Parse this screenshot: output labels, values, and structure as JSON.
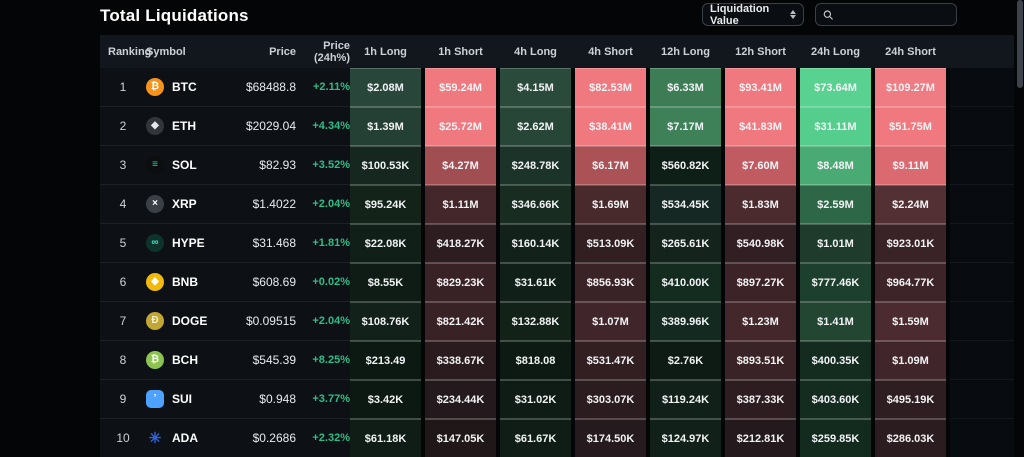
{
  "page": {
    "title": "Total Liquidations"
  },
  "controls": {
    "dropdown_label": "Liquidation Value",
    "search_placeholder": ""
  },
  "colors": {
    "change_positive": "#2ebd85",
    "header_bg": "#12161d",
    "row_bg": "#0d1116"
  },
  "table": {
    "headers": [
      "Ranking",
      "Symbol",
      "Price",
      "Price (24h%)",
      "1h Long",
      "1h Short",
      "4h Long",
      "4h Short",
      "12h Long",
      "12h Short",
      "24h Long",
      "24h Short"
    ],
    "rows": [
      {
        "rank": "1",
        "symbol": "BTC",
        "icon": {
          "glyph": "₿",
          "bg": "#f7931a",
          "fg": "#ffffff",
          "shape": "circle"
        },
        "price": "$68488.8",
        "change": "+2.11%",
        "cells": [
          {
            "v": "$2.08M",
            "bg": "#29463a"
          },
          {
            "v": "$59.24M",
            "bg": "#f0797f"
          },
          {
            "v": "$4.15M",
            "bg": "#2a4b3b"
          },
          {
            "v": "$82.53M",
            "bg": "#f0797f"
          },
          {
            "v": "$6.33M",
            "bg": "#3d7d56"
          },
          {
            "v": "$93.41M",
            "bg": "#f0797f"
          },
          {
            "v": "$73.64M",
            "bg": "#59d190"
          },
          {
            "v": "$109.27M",
            "bg": "#ef7c82"
          }
        ]
      },
      {
        "rank": "2",
        "symbol": "ETH",
        "icon": {
          "glyph": "◆",
          "bg": "#32363b",
          "fg": "#e6e9ec",
          "shape": "circle"
        },
        "price": "$2029.04",
        "change": "+4.34%",
        "cells": [
          {
            "v": "$1.39M",
            "bg": "#243f33"
          },
          {
            "v": "$25.72M",
            "bg": "#f0797f"
          },
          {
            "v": "$2.62M",
            "bg": "#284637"
          },
          {
            "v": "$38.41M",
            "bg": "#f0797f"
          },
          {
            "v": "$7.17M",
            "bg": "#3e8159"
          },
          {
            "v": "$41.83M",
            "bg": "#f0797f"
          },
          {
            "v": "$31.11M",
            "bg": "#55ce8d"
          },
          {
            "v": "$51.75M",
            "bg": "#f0797f"
          }
        ]
      },
      {
        "rank": "3",
        "symbol": "SOL",
        "icon": {
          "glyph": "≡",
          "bg": "#0c0d0f",
          "fg": "#00e8a2",
          "shape": "circle"
        },
        "price": "$82.93",
        "change": "+3.52%",
        "cells": [
          {
            "v": "$100.53K",
            "bg": "#15271e"
          },
          {
            "v": "$4.27M",
            "bg": "#a14e52"
          },
          {
            "v": "$248.78K",
            "bg": "#1b3329"
          },
          {
            "v": "$6.17M",
            "bg": "#aa5256"
          },
          {
            "v": "$560.82K",
            "bg": "#0e1f18"
          },
          {
            "v": "$7.60M",
            "bg": "#c05c61"
          },
          {
            "v": "$8.48M",
            "bg": "#4aaa73"
          },
          {
            "v": "$9.11M",
            "bg": "#da6a70"
          }
        ]
      },
      {
        "rank": "4",
        "symbol": "XRP",
        "icon": {
          "glyph": "×",
          "bg": "#3a4046",
          "fg": "#ffffff",
          "shape": "circle"
        },
        "price": "$1.4022",
        "change": "+2.04%",
        "cells": [
          {
            "v": "$95.24K",
            "bg": "#142319"
          },
          {
            "v": "$1.11M",
            "bg": "#44272a"
          },
          {
            "v": "$346.66K",
            "bg": "#182c22"
          },
          {
            "v": "$1.69M",
            "bg": "#48292c"
          },
          {
            "v": "$534.45K",
            "bg": "#152823"
          },
          {
            "v": "$1.83M",
            "bg": "#4b2b2e"
          },
          {
            "v": "$2.59M",
            "bg": "#2e6747"
          },
          {
            "v": "$2.24M",
            "bg": "#523034"
          }
        ]
      },
      {
        "rank": "5",
        "symbol": "HYPE",
        "icon": {
          "glyph": "∞",
          "bg": "#0d332c",
          "fg": "#3ee6c4",
          "shape": "circle"
        },
        "price": "$31.468",
        "change": "+1.81%",
        "cells": [
          {
            "v": "$22.08K",
            "bg": "#101f18"
          },
          {
            "v": "$418.27K",
            "bg": "#2d1d20"
          },
          {
            "v": "$160.14K",
            "bg": "#122119"
          },
          {
            "v": "$513.09K",
            "bg": "#311f22"
          },
          {
            "v": "$265.61K",
            "bg": "#14231b"
          },
          {
            "v": "$540.98K",
            "bg": "#321f23"
          },
          {
            "v": "$1.01M",
            "bg": "#1e3b2b"
          },
          {
            "v": "$923.01K",
            "bg": "#3a2327"
          }
        ]
      },
      {
        "rank": "6",
        "symbol": "BNB",
        "icon": {
          "glyph": "◆",
          "bg": "#f0b90b",
          "fg": "#ffffff",
          "shape": "circle"
        },
        "price": "$608.69",
        "change": "+0.02%",
        "cells": [
          {
            "v": "$8.55K",
            "bg": "#0e1c15"
          },
          {
            "v": "$829.23K",
            "bg": "#392226"
          },
          {
            "v": "$31.61K",
            "bg": "#101f18"
          },
          {
            "v": "$856.93K",
            "bg": "#3a2326"
          },
          {
            "v": "$410.00K",
            "bg": "#142b20"
          },
          {
            "v": "$897.27K",
            "bg": "#3b2327"
          },
          {
            "v": "$777.46K",
            "bg": "#1d3f2d"
          },
          {
            "v": "$964.77K",
            "bg": "#3d2428"
          }
        ]
      },
      {
        "rank": "7",
        "symbol": "DOGE",
        "icon": {
          "glyph": "Ð",
          "bg": "#c2a633",
          "fg": "#f7efd1",
          "shape": "circle"
        },
        "price": "$0.09515",
        "change": "+2.04%",
        "cells": [
          {
            "v": "$108.76K",
            "bg": "#12221a"
          },
          {
            "v": "$821.42K",
            "bg": "#392226"
          },
          {
            "v": "$132.88K",
            "bg": "#122219"
          },
          {
            "v": "$1.07M",
            "bg": "#40262a"
          },
          {
            "v": "$389.96K",
            "bg": "#142a20"
          },
          {
            "v": "$1.23M",
            "bg": "#43272b"
          },
          {
            "v": "$1.41M",
            "bg": "#234633"
          },
          {
            "v": "$1.59M",
            "bg": "#4b2b2f"
          }
        ]
      },
      {
        "rank": "8",
        "symbol": "BCH",
        "icon": {
          "glyph": "₿",
          "bg": "#8dc351",
          "fg": "#ffffff",
          "shape": "circle"
        },
        "price": "$545.39",
        "change": "+8.25%",
        "cells": [
          {
            "v": "$213.49",
            "bg": "#0c1912"
          },
          {
            "v": "$338.67K",
            "bg": "#2a1b1e"
          },
          {
            "v": "$818.08",
            "bg": "#0d1a13"
          },
          {
            "v": "$531.47K",
            "bg": "#311f22"
          },
          {
            "v": "$2.76K",
            "bg": "#0d1b14"
          },
          {
            "v": "$893.51K",
            "bg": "#3a2326"
          },
          {
            "v": "$400.35K",
            "bg": "#142b20"
          },
          {
            "v": "$1.09M",
            "bg": "#40262a"
          }
        ]
      },
      {
        "rank": "9",
        "symbol": "SUI",
        "icon": {
          "glyph": "’",
          "bg": "#4da2ff",
          "fg": "#ffffff",
          "shape": "square"
        },
        "price": "$0.948",
        "change": "+3.77%",
        "cells": [
          {
            "v": "$3.42K",
            "bg": "#0c1912"
          },
          {
            "v": "$234.44K",
            "bg": "#241a1d"
          },
          {
            "v": "$31.02K",
            "bg": "#0e1c15"
          },
          {
            "v": "$303.07K",
            "bg": "#2b1c1f"
          },
          {
            "v": "$119.24K",
            "bg": "#112019"
          },
          {
            "v": "$387.33K",
            "bg": "#2d1d20"
          },
          {
            "v": "$403.60K",
            "bg": "#142b20"
          },
          {
            "v": "$495.19K",
            "bg": "#2f1e21"
          }
        ]
      },
      {
        "rank": "10",
        "symbol": "ADA",
        "icon": {
          "glyph": "✳",
          "bg": "none",
          "fg": "#2f62d9",
          "shape": "bare"
        },
        "price": "$0.2686",
        "change": "+2.32%",
        "cells": [
          {
            "v": "$61.18K",
            "bg": "#0f1d16"
          },
          {
            "v": "$147.05K",
            "bg": "#201818"
          },
          {
            "v": "$61.67K",
            "bg": "#0f1d16"
          },
          {
            "v": "$174.50K",
            "bg": "#251a1d"
          },
          {
            "v": "$124.97K",
            "bg": "#112019"
          },
          {
            "v": "$212.81K",
            "bg": "#241a1d"
          },
          {
            "v": "$259.85K",
            "bg": "#132a1f"
          },
          {
            "v": "$286.03K",
            "bg": "#2a1c1f"
          }
        ]
      }
    ]
  }
}
